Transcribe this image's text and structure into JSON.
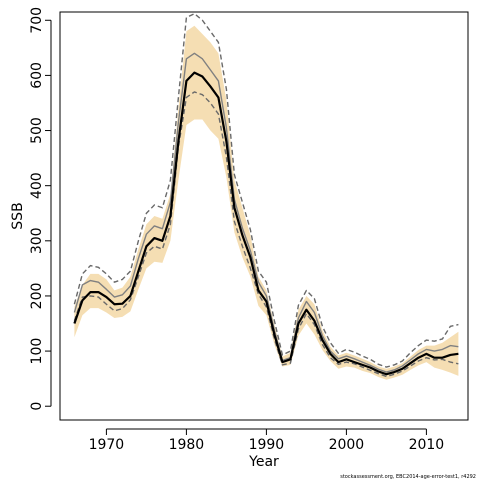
{
  "chart_data": {
    "type": "line",
    "title": "",
    "xlabel": "Year",
    "ylabel": "SSB",
    "xlim": [
      1964.2,
      2015.2
    ],
    "ylim": [
      -25,
      715
    ],
    "x_ticks": [
      "1970",
      "1980",
      "1990",
      "2000",
      "2010"
    ],
    "y_ticks": [
      "0",
      "100",
      "200",
      "300",
      "400",
      "500",
      "600",
      "700"
    ],
    "grid": false,
    "legend": "none",
    "footnote": "stockassessment.org, EBC2014-age-error-test1, r4292",
    "colors": {
      "band": "#f5deb3",
      "estimate": "#000000",
      "alt_estimate": "#808080",
      "alt_bounds": "#696969"
    },
    "x": [
      1966,
      1967,
      1968,
      1969,
      1970,
      1971,
      1972,
      1973,
      1974,
      1975,
      1976,
      1977,
      1978,
      1979,
      1980,
      1981,
      1982,
      1983,
      1984,
      1985,
      1986,
      1987,
      1988,
      1989,
      1990,
      1991,
      1992,
      1993,
      1994,
      1995,
      1996,
      1997,
      1998,
      1999,
      2000,
      2001,
      2002,
      2003,
      2004,
      2005,
      2006,
      2007,
      2008,
      2009,
      2010,
      2011,
      2012,
      2013,
      2014
    ],
    "series": [
      {
        "role": "estimate",
        "values": [
          150,
          192,
          207,
          207,
          198,
          185,
          186,
          200,
          245,
          290,
          305,
          300,
          345,
          480,
          590,
          605,
          598,
          580,
          560,
          480,
          360,
          310,
          270,
          210,
          190,
          130,
          80,
          85,
          150,
          175,
          155,
          120,
          95,
          80,
          85,
          80,
          75,
          70,
          63,
          58,
          62,
          68,
          78,
          88,
          95,
          88,
          88,
          93,
          95
        ]
      },
      {
        "role": "band-upper",
        "values": [
          180,
          220,
          240,
          240,
          230,
          210,
          215,
          235,
          285,
          330,
          345,
          340,
          385,
          540,
          680,
          690,
          675,
          660,
          640,
          555,
          410,
          360,
          310,
          235,
          210,
          148,
          90,
          97,
          175,
          200,
          185,
          138,
          108,
          92,
          97,
          92,
          86,
          80,
          72,
          68,
          72,
          78,
          90,
          102,
          110,
          110,
          115,
          125,
          135
        ]
      },
      {
        "role": "band-lower",
        "values": [
          125,
          165,
          178,
          178,
          170,
          160,
          162,
          172,
          212,
          250,
          262,
          260,
          300,
          410,
          510,
          520,
          520,
          500,
          485,
          415,
          315,
          270,
          235,
          182,
          165,
          112,
          72,
          75,
          128,
          150,
          130,
          102,
          82,
          68,
          72,
          70,
          64,
          60,
          53,
          48,
          52,
          57,
          66,
          74,
          80,
          70,
          66,
          61,
          55
        ]
      },
      {
        "role": "alt-estimate",
        "values": [
          170,
          220,
          228,
          225,
          212,
          198,
          202,
          218,
          268,
          312,
          327,
          322,
          370,
          515,
          630,
          640,
          630,
          610,
          590,
          505,
          375,
          323,
          282,
          225,
          200,
          138,
          83,
          88,
          160,
          190,
          170,
          128,
          100,
          86,
          91,
          86,
          80,
          74,
          67,
          62,
          66,
          73,
          84,
          95,
          103,
          100,
          103,
          110,
          108
        ]
      },
      {
        "role": "alt-upper",
        "values": [
          185,
          240,
          255,
          252,
          240,
          225,
          230,
          245,
          300,
          350,
          365,
          360,
          410,
          560,
          705,
          712,
          700,
          680,
          660,
          575,
          420,
          370,
          320,
          245,
          225,
          155,
          93,
          100,
          183,
          210,
          195,
          145,
          115,
          96,
          103,
          98,
          91,
          85,
          76,
          71,
          75,
          82,
          97,
          110,
          120,
          118,
          122,
          145,
          148
        ]
      },
      {
        "role": "alt-lower",
        "values": [
          155,
          198,
          200,
          198,
          185,
          173,
          177,
          193,
          235,
          278,
          290,
          285,
          330,
          470,
          560,
          570,
          565,
          550,
          530,
          452,
          335,
          290,
          250,
          203,
          180,
          122,
          75,
          78,
          140,
          168,
          148,
          112,
          88,
          76,
          80,
          77,
          71,
          65,
          59,
          54,
          58,
          64,
          73,
          82,
          88,
          84,
          85,
          80,
          77
        ]
      }
    ]
  }
}
